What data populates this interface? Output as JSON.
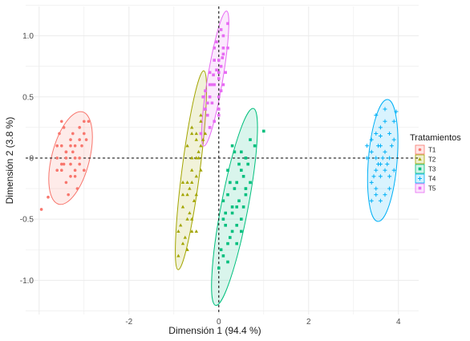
{
  "chart_data": {
    "type": "scatter",
    "title": "",
    "xlabel": "Dimensión 1 (94.4 %)",
    "ylabel": "Dimensión 2 (3.8 %)",
    "xlim": [
      -4.3,
      4.45
    ],
    "ylim": [
      -1.28,
      1.24
    ],
    "x_ticks": [
      -2,
      0,
      2,
      4
    ],
    "y_ticks": [
      -1.0,
      -0.5,
      0,
      0.5,
      1.0
    ],
    "x_tick_labels": [
      "-2",
      "0",
      "2",
      "4"
    ],
    "y_tick_labels": [
      "-1.0",
      "-0.5",
      "0",
      "0.5",
      "1.0"
    ],
    "reference_lines": {
      "x": 0,
      "y": 0,
      "style": "dashed"
    },
    "grid": true,
    "legend": {
      "title": "Tratamientos",
      "position": "right"
    },
    "series": [
      {
        "name": "T1",
        "color": "#F8766D",
        "marker": "circle",
        "ellipse": {
          "cx": -3.3,
          "cy": 0.0,
          "rx": 0.42,
          "ry": 0.39
        },
        "points": [
          [
            -3.2,
            0.1
          ],
          [
            -3.4,
            0.05
          ],
          [
            -3.1,
            -0.05
          ],
          [
            -3.5,
            -0.1
          ],
          [
            -3.3,
            0.15
          ],
          [
            -3.6,
            0.0
          ],
          [
            -3.0,
            0.2
          ],
          [
            -3.2,
            -0.15
          ],
          [
            -3.4,
            -0.2
          ],
          [
            -3.1,
            0.0
          ],
          [
            -3.5,
            0.1
          ],
          [
            -3.3,
            -0.05
          ],
          [
            -3.0,
            0.3
          ],
          [
            -3.6,
            -0.1
          ],
          [
            -3.25,
            0.05
          ],
          [
            -3.45,
            0.25
          ],
          [
            -3.15,
            -0.25
          ],
          [
            -3.35,
            -0.3
          ],
          [
            -3.05,
            0.1
          ],
          [
            -3.55,
            0.2
          ],
          [
            -3.3,
            0.1
          ],
          [
            -3.2,
            0.0
          ],
          [
            -3.4,
            0.05
          ],
          [
            -3.1,
            0.15
          ],
          [
            -3.5,
            -0.05
          ],
          [
            -3.3,
            -0.15
          ],
          [
            -3.0,
            -0.1
          ],
          [
            -3.6,
            0.1
          ],
          [
            -3.25,
            0.2
          ],
          [
            -3.45,
            -0.05
          ],
          [
            -2.9,
            0.3
          ],
          [
            -3.8,
            -0.32
          ],
          [
            -3.1,
            0.25
          ],
          [
            -3.5,
            0.3
          ],
          [
            -3.2,
            -0.1
          ],
          [
            -3.95,
            -0.42
          ],
          [
            -2.95,
            0.15
          ],
          [
            -3.4,
            0.0
          ]
        ]
      },
      {
        "name": "T2",
        "color": "#A3A500",
        "marker": "triangle",
        "ellipse": {
          "cx": -0.62,
          "cy": -0.1,
          "rx": 0.2,
          "ry": 0.82
        },
        "points": [
          [
            -0.6,
            0.2
          ],
          [
            -0.5,
            0.0
          ],
          [
            -0.7,
            -0.2
          ],
          [
            -0.4,
            0.3
          ],
          [
            -0.8,
            -0.4
          ],
          [
            -0.6,
            -0.1
          ],
          [
            -0.5,
            -0.3
          ],
          [
            -0.7,
            0.1
          ],
          [
            -0.3,
            0.4
          ],
          [
            -0.9,
            -0.6
          ],
          [
            -0.6,
            -0.5
          ],
          [
            -0.4,
            0.1
          ],
          [
            -0.8,
            -0.7
          ],
          [
            -0.5,
            0.2
          ],
          [
            -0.7,
            -0.3
          ],
          [
            -0.6,
            0.0
          ],
          [
            -0.4,
            -0.1
          ],
          [
            -0.8,
            -0.2
          ],
          [
            -0.5,
            -0.6
          ],
          [
            -0.7,
            -0.5
          ],
          [
            -0.3,
            0.2
          ],
          [
            -0.9,
            -0.8
          ],
          [
            -0.6,
            -0.2
          ],
          [
            -0.5,
            0.15
          ],
          [
            -0.65,
            -0.45
          ],
          [
            -0.55,
            -0.35
          ],
          [
            -0.75,
            -0.65
          ],
          [
            -0.45,
            0.05
          ],
          [
            -0.85,
            -0.55
          ],
          [
            -0.6,
            0.25
          ],
          [
            -0.4,
            0.35
          ],
          [
            -0.7,
            -0.75
          ],
          [
            -0.5,
            -0.15
          ],
          [
            -0.35,
            0.15
          ],
          [
            -0.8,
            -0.3
          ],
          [
            -0.6,
            -0.6
          ],
          [
            -0.45,
            0.0
          ],
          [
            -0.65,
            -0.25
          ]
        ]
      },
      {
        "name": "T3",
        "color": "#00BF7D",
        "marker": "square",
        "ellipse": {
          "cx": 0.35,
          "cy": -0.4,
          "rx": 0.3,
          "ry": 0.82
        },
        "points": [
          [
            0.3,
            0.1
          ],
          [
            0.5,
            -0.1
          ],
          [
            0.2,
            -0.3
          ],
          [
            0.6,
            0.0
          ],
          [
            0.1,
            -0.5
          ],
          [
            0.4,
            -0.4
          ],
          [
            0.3,
            -0.6
          ],
          [
            0.7,
            -0.2
          ],
          [
            0.2,
            -0.7
          ],
          [
            0.5,
            -0.5
          ],
          [
            0.1,
            -0.8
          ],
          [
            0.4,
            -0.2
          ],
          [
            0.6,
            -0.3
          ],
          [
            0.3,
            -0.4
          ],
          [
            0.2,
            -0.1
          ],
          [
            0.8,
            0.1
          ],
          [
            0.0,
            -0.9
          ],
          [
            0.4,
            -0.7
          ],
          [
            0.5,
            0.05
          ],
          [
            0.35,
            -0.25
          ],
          [
            0.15,
            -0.55
          ],
          [
            0.55,
            -0.15
          ],
          [
            0.25,
            -0.65
          ],
          [
            0.45,
            -0.35
          ],
          [
            0.65,
            -0.05
          ],
          [
            0.05,
            -0.75
          ],
          [
            0.3,
            -0.45
          ],
          [
            0.7,
            0.15
          ],
          [
            0.2,
            -0.85
          ],
          [
            0.4,
            -0.55
          ],
          [
            0.6,
            -0.25
          ],
          [
            0.1,
            -0.35
          ],
          [
            0.35,
            0.05
          ],
          [
            0.5,
            -0.6
          ],
          [
            0.25,
            -0.2
          ],
          [
            1.0,
            0.22
          ],
          [
            0.45,
            -0.05
          ],
          [
            0.15,
            -0.45
          ],
          [
            0.55,
            -0.4
          ]
        ]
      },
      {
        "name": "T4",
        "color": "#00B0F6",
        "marker": "cross",
        "ellipse": {
          "cx": 3.65,
          "cy": -0.02,
          "rx": 0.32,
          "ry": 0.5
        },
        "points": [
          [
            3.6,
            0.1
          ],
          [
            3.7,
            -0.1
          ],
          [
            3.5,
            0.2
          ],
          [
            3.8,
            0.0
          ],
          [
            3.4,
            -0.2
          ],
          [
            3.7,
            0.3
          ],
          [
            3.5,
            -0.3
          ],
          [
            3.9,
            0.15
          ],
          [
            3.6,
            -0.15
          ],
          [
            3.4,
            0.05
          ],
          [
            3.8,
            -0.25
          ],
          [
            3.5,
            0.35
          ],
          [
            3.7,
            0.05
          ],
          [
            3.6,
            -0.05
          ],
          [
            3.9,
            -0.1
          ],
          [
            3.3,
            0.0
          ],
          [
            3.6,
            0.25
          ],
          [
            3.8,
            0.2
          ],
          [
            3.5,
            -0.1
          ],
          [
            3.7,
            -0.3
          ],
          [
            3.4,
            0.15
          ],
          [
            3.65,
            0.0
          ],
          [
            3.55,
            0.1
          ],
          [
            3.75,
            -0.05
          ],
          [
            3.45,
            -0.15
          ],
          [
            3.85,
            0.1
          ],
          [
            3.6,
            -0.35
          ],
          [
            3.7,
            0.4
          ],
          [
            3.5,
            0.0
          ],
          [
            3.4,
            -0.35
          ],
          [
            3.9,
            0.3
          ],
          [
            3.3,
            0.1
          ],
          [
            3.6,
            0.18
          ],
          [
            3.8,
            -0.15
          ],
          [
            3.5,
            -0.25
          ],
          [
            3.95,
            0.38
          ],
          [
            3.55,
            -0.05
          ]
        ]
      },
      {
        "name": "T5",
        "color": "#E76BF3",
        "marker": "square",
        "ellipse": {
          "cx": -0.08,
          "cy": 0.65,
          "rx": 0.17,
          "ry": 0.56
        },
        "points": [
          [
            -0.1,
            0.6
          ],
          [
            0.0,
            0.8
          ],
          [
            -0.2,
            0.5
          ],
          [
            0.1,
            0.9
          ],
          [
            -0.3,
            0.4
          ],
          [
            0.0,
            0.7
          ],
          [
            -0.1,
            0.3
          ],
          [
            0.1,
            1.0
          ],
          [
            -0.2,
            0.6
          ],
          [
            0.0,
            0.5
          ],
          [
            -0.1,
            0.9
          ],
          [
            0.2,
            1.1
          ],
          [
            -0.3,
            0.55
          ],
          [
            0.05,
            0.75
          ],
          [
            -0.15,
            0.45
          ],
          [
            0.1,
            0.85
          ],
          [
            -0.25,
            0.35
          ],
          [
            0.0,
            0.65
          ],
          [
            -0.05,
            0.95
          ],
          [
            0.15,
            0.7
          ],
          [
            -0.2,
            0.25
          ],
          [
            0.05,
            0.55
          ],
          [
            -0.1,
            0.8
          ],
          [
            0.2,
            0.9
          ],
          [
            -0.15,
            0.6
          ],
          [
            0.0,
            0.4
          ],
          [
            -0.35,
            0.5
          ],
          [
            0.1,
            0.6
          ],
          [
            -0.05,
            0.72
          ],
          [
            -0.2,
            0.7
          ],
          [
            0.05,
            1.05
          ],
          [
            -0.4,
            0.2
          ],
          [
            0.0,
            0.35
          ],
          [
            -0.12,
            0.68
          ],
          [
            0.08,
            0.82
          ],
          [
            -0.25,
            0.45
          ]
        ]
      }
    ]
  }
}
